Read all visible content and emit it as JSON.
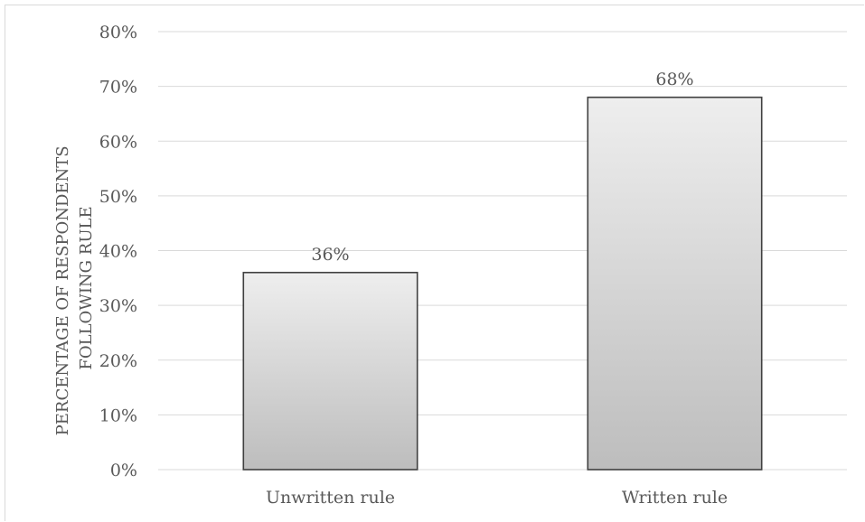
{
  "chart_data": {
    "type": "bar",
    "categories": [
      "Unwritten rule",
      "Written rule"
    ],
    "values": [
      36,
      68
    ],
    "data_labels": [
      "36%",
      "68%"
    ],
    "title": "",
    "xlabel": "",
    "ylabel": "PERCENTAGE OF RESPONDENTS FOLLOWING RULE",
    "ylabel_lines": [
      "PERCENTAGE OF RESPONDENTS",
      "FOLLOWING RULE"
    ],
    "ylim": [
      0,
      80
    ],
    "yticks": [
      0,
      10,
      20,
      30,
      40,
      50,
      60,
      70,
      80
    ],
    "ytick_labels": [
      "0%",
      "10%",
      "20%",
      "30%",
      "40%",
      "50%",
      "60%",
      "70%",
      "80%"
    ],
    "grid": true,
    "legend": "none",
    "colors": {
      "bar_fill_top": "#eeeeee",
      "bar_fill_bottom": "#bdbdbd",
      "bar_stroke": "#404040",
      "grid": "#d9d9d9",
      "text": "#595959"
    }
  }
}
